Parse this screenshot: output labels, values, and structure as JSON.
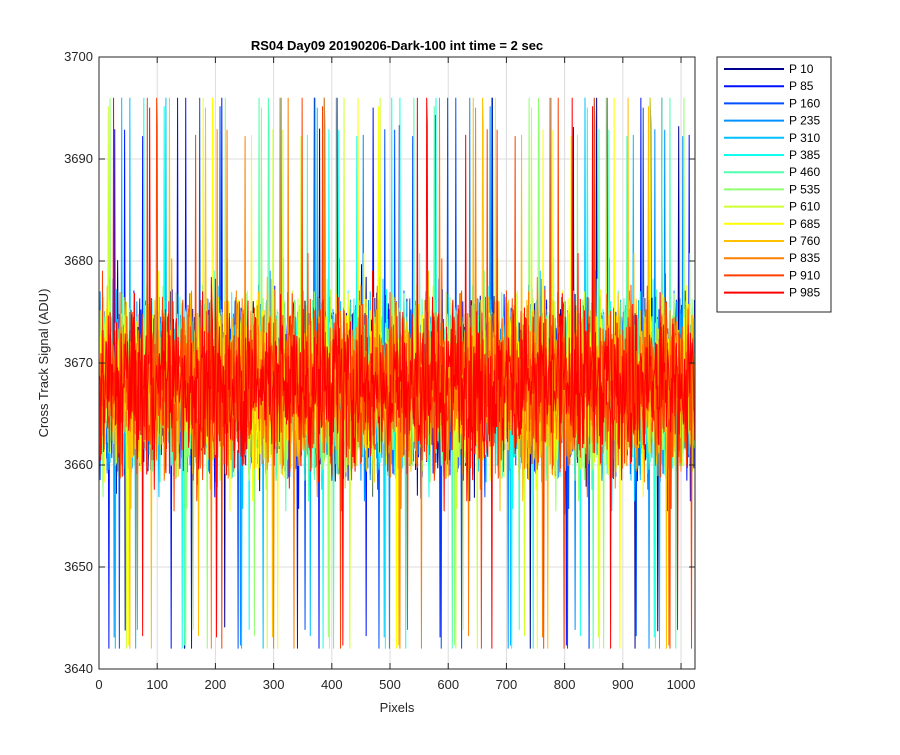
{
  "chart_data": {
    "type": "line",
    "title": "RS04 Day09 20190206-Dark-100 int time = 2 sec",
    "xlabel": "Pixels",
    "ylabel": "Cross Track Signal (ADU)",
    "xlim": [
      0,
      1024
    ],
    "ylim": [
      3640,
      3700
    ],
    "xticks": [
      0,
      100,
      200,
      300,
      400,
      500,
      600,
      700,
      800,
      900,
      1000
    ],
    "yticks": [
      3640,
      3650,
      3660,
      3670,
      3680,
      3690,
      3700
    ],
    "grid": true,
    "legend_position": "outside-top-right",
    "noise_profile": {
      "mean": 3668,
      "spread": 18,
      "min": 3642,
      "max": 3696,
      "points": 1024
    },
    "series": [
      {
        "name": "P 10",
        "color": "#00008f"
      },
      {
        "name": "P 85",
        "color": "#0010ff"
      },
      {
        "name": "P 160",
        "color": "#0050ff"
      },
      {
        "name": "P 235",
        "color": "#0090ff"
      },
      {
        "name": "P 310",
        "color": "#00c0ff"
      },
      {
        "name": "P 385",
        "color": "#10ffef"
      },
      {
        "name": "P 460",
        "color": "#50ffaf"
      },
      {
        "name": "P 535",
        "color": "#90ff70"
      },
      {
        "name": "P 610",
        "color": "#cfff30"
      },
      {
        "name": "P 685",
        "color": "#ffff00"
      },
      {
        "name": "P 760",
        "color": "#ffc000"
      },
      {
        "name": "P 835",
        "color": "#ff8000"
      },
      {
        "name": "P 910",
        "color": "#ff4000"
      },
      {
        "name": "P 985",
        "color": "#ff0000"
      }
    ]
  }
}
